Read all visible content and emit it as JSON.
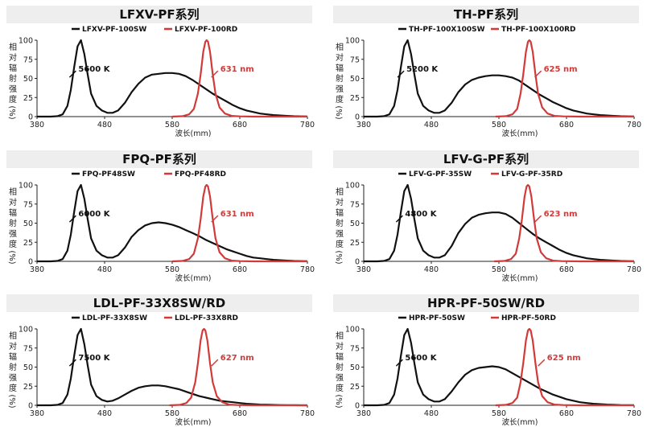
{
  "chart_data": [
    {
      "type": "line",
      "title": "LFXV-PF系列",
      "xlabel": "波长(mm)",
      "ylabel_chars": [
        "相",
        "对",
        "辐",
        "射",
        "强",
        "度"
      ],
      "ylabel_unit": "(%)",
      "xlim": [
        380,
        780
      ],
      "ylim": [
        0,
        100
      ],
      "xticks": [
        380,
        480,
        580,
        680,
        780
      ],
      "yticks": [
        0,
        25,
        50,
        75,
        100
      ],
      "series": [
        {
          "name": "LFXV-PF-100SW",
          "color": "#111111",
          "annotation": "5600 K",
          "anno_x": 440,
          "anno_y": 62,
          "x": [
            380,
            400,
            410,
            418,
            425,
            430,
            435,
            440,
            445,
            450,
            455,
            460,
            468,
            476,
            484,
            492,
            500,
            510,
            520,
            530,
            540,
            550,
            560,
            570,
            580,
            590,
            600,
            610,
            620,
            630,
            640,
            650,
            660,
            670,
            680,
            690,
            700,
            710,
            720,
            730,
            740,
            750,
            760,
            770,
            780
          ],
          "y": [
            0,
            0,
            0.5,
            3,
            14,
            35,
            65,
            92,
            100,
            82,
            55,
            30,
            14,
            8,
            5,
            5,
            8,
            18,
            32,
            43,
            51,
            55,
            56,
            57,
            57,
            56,
            53,
            48,
            42,
            36,
            30,
            25,
            20,
            15,
            11,
            8,
            6,
            4,
            3,
            2,
            1.5,
            1,
            0.5,
            0.3,
            0.2
          ]
        },
        {
          "name": "LFXV-PF-100RD",
          "color": "#d23a3a",
          "annotation": "631 nm",
          "anno_x": 650,
          "anno_y": 62,
          "x": [
            580,
            595,
            605,
            612,
            618,
            622,
            626,
            629,
            631,
            633,
            636,
            640,
            644,
            650,
            658,
            668,
            680,
            700,
            780
          ],
          "y": [
            0,
            0.5,
            3,
            10,
            30,
            55,
            85,
            98,
            100,
            98,
            85,
            55,
            30,
            12,
            4,
            1,
            0.3,
            0,
            0
          ]
        }
      ]
    },
    {
      "type": "line",
      "title": "TH-PF系列",
      "xlabel": "波长(mm)",
      "ylabel_chars": [
        "相",
        "对",
        "辐",
        "射",
        "强",
        "度"
      ],
      "ylabel_unit": "(%)",
      "xlim": [
        380,
        780
      ],
      "ylim": [
        0,
        100
      ],
      "xticks": [
        380,
        480,
        580,
        680,
        780
      ],
      "yticks": [
        0,
        25,
        50,
        75,
        100
      ],
      "series": [
        {
          "name": "TH-PF-100X100SW",
          "color": "#111111",
          "annotation": "5200 K",
          "anno_x": 442,
          "anno_y": 62,
          "x": [
            380,
            400,
            410,
            418,
            425,
            430,
            435,
            440,
            445,
            450,
            455,
            460,
            468,
            476,
            484,
            492,
            500,
            510,
            520,
            530,
            540,
            550,
            560,
            570,
            580,
            590,
            600,
            610,
            620,
            630,
            640,
            650,
            660,
            670,
            680,
            690,
            700,
            710,
            720,
            730,
            740,
            750,
            760,
            770,
            780
          ],
          "y": [
            0,
            0,
            0.5,
            3,
            14,
            35,
            65,
            92,
            100,
            82,
            55,
            30,
            14,
            8,
            5,
            5,
            8,
            18,
            32,
            42,
            48,
            51,
            53,
            54,
            54,
            53,
            51,
            47,
            41,
            35,
            29,
            24,
            19,
            15,
            11,
            8,
            6,
            4,
            3,
            2,
            1.5,
            1,
            0.5,
            0.3,
            0.2
          ]
        },
        {
          "name": "TH-PF-100X100RD",
          "color": "#d23a3a",
          "annotation": "625 nm",
          "anno_x": 645,
          "anno_y": 62,
          "x": [
            575,
            590,
            600,
            607,
            612,
            616,
            620,
            623,
            625,
            627,
            630,
            634,
            638,
            644,
            652,
            662,
            675,
            700,
            780
          ],
          "y": [
            0,
            0.5,
            3,
            10,
            30,
            55,
            85,
            98,
            100,
            98,
            85,
            55,
            30,
            12,
            4,
            1,
            0.3,
            0,
            0
          ]
        }
      ]
    },
    {
      "type": "line",
      "title": "FPQ-PF系列",
      "xlabel": "波长(mm)",
      "ylabel_chars": [
        "相",
        "对",
        "辐",
        "射",
        "强",
        "度"
      ],
      "ylabel_unit": "(%)",
      "xlim": [
        380,
        780
      ],
      "ylim": [
        0,
        100
      ],
      "xticks": [
        380,
        480,
        580,
        680,
        780
      ],
      "yticks": [
        0,
        25,
        50,
        75,
        100
      ],
      "series": [
        {
          "name": "FPQ-PF48SW",
          "color": "#111111",
          "annotation": "6000 K",
          "anno_x": 440,
          "anno_y": 62,
          "x": [
            380,
            400,
            410,
            418,
            425,
            430,
            435,
            440,
            445,
            450,
            455,
            460,
            468,
            476,
            484,
            492,
            500,
            510,
            520,
            530,
            540,
            550,
            560,
            570,
            580,
            590,
            600,
            610,
            620,
            630,
            640,
            650,
            660,
            670,
            680,
            690,
            700,
            710,
            720,
            730,
            740,
            750,
            760,
            770,
            780
          ],
          "y": [
            0,
            0,
            0.5,
            3,
            14,
            35,
            65,
            92,
            100,
            82,
            55,
            30,
            14,
            8,
            5,
            5,
            8,
            18,
            32,
            41,
            47,
            50,
            51,
            50,
            48,
            45,
            41,
            37,
            33,
            28,
            24,
            20,
            16,
            13,
            10,
            7,
            5,
            4,
            3,
            2,
            1.5,
            1,
            0.5,
            0.3,
            0.2
          ]
        },
        {
          "name": "FPQ-PF48RD",
          "color": "#d23a3a",
          "annotation": "631 nm",
          "anno_x": 650,
          "anno_y": 62,
          "x": [
            580,
            595,
            605,
            612,
            618,
            622,
            626,
            629,
            631,
            633,
            636,
            640,
            644,
            650,
            658,
            668,
            680,
            700,
            780
          ],
          "y": [
            0,
            0.5,
            3,
            10,
            30,
            55,
            85,
            98,
            100,
            98,
            85,
            55,
            30,
            12,
            4,
            1,
            0.3,
            0,
            0
          ]
        }
      ]
    },
    {
      "type": "line",
      "title": "LFV-G-PF系列",
      "xlabel": "波长(mm)",
      "ylabel_chars": [
        "相",
        "对",
        "辐",
        "射",
        "强",
        "度"
      ],
      "ylabel_unit": "(%)",
      "xlim": [
        380,
        780
      ],
      "ylim": [
        0,
        100
      ],
      "xticks": [
        380,
        480,
        580,
        680,
        780
      ],
      "yticks": [
        0,
        25,
        50,
        75,
        100
      ],
      "series": [
        {
          "name": "LFV-G-PF-35SW",
          "color": "#111111",
          "annotation": "4800 K",
          "anno_x": 440,
          "anno_y": 62,
          "x": [
            380,
            400,
            410,
            418,
            425,
            430,
            435,
            440,
            445,
            450,
            455,
            460,
            468,
            476,
            484,
            492,
            500,
            510,
            520,
            530,
            540,
            550,
            560,
            570,
            580,
            590,
            600,
            610,
            620,
            630,
            640,
            650,
            660,
            670,
            680,
            690,
            700,
            710,
            720,
            730,
            740,
            750,
            760,
            770,
            780
          ],
          "y": [
            0,
            0,
            0.5,
            3,
            14,
            35,
            65,
            92,
            100,
            82,
            55,
            30,
            14,
            8,
            5,
            5,
            8,
            20,
            37,
            49,
            57,
            61,
            63,
            64,
            64,
            62,
            57,
            50,
            43,
            36,
            30,
            25,
            20,
            15,
            11,
            8,
            6,
            4,
            3,
            2,
            1.5,
            1,
            0.5,
            0.3,
            0.2
          ]
        },
        {
          "name": "LFV-G-PF-35RD",
          "color": "#d23a3a",
          "annotation": "623 nm",
          "anno_x": 645,
          "anno_y": 62,
          "x": [
            573,
            588,
            598,
            605,
            610,
            614,
            618,
            621,
            623,
            625,
            628,
            632,
            636,
            642,
            650,
            660,
            672,
            700,
            780
          ],
          "y": [
            0,
            0.5,
            3,
            10,
            30,
            55,
            85,
            98,
            100,
            98,
            85,
            55,
            30,
            12,
            4,
            1,
            0.3,
            0,
            0
          ]
        }
      ]
    },
    {
      "type": "line",
      "title": "LDL-PF-33X8SW/RD",
      "xlabel": "波长(mm)",
      "ylabel_chars": [
        "相",
        "对",
        "辐",
        "射",
        "强",
        "度"
      ],
      "ylabel_unit": "(%)",
      "xlim": [
        380,
        780
      ],
      "ylim": [
        0,
        100
      ],
      "xticks": [
        380,
        480,
        580,
        680,
        780
      ],
      "yticks": [
        0,
        25,
        50,
        75,
        100
      ],
      "series": [
        {
          "name": "LDL-PF-33X8SW",
          "color": "#111111",
          "annotation": "7500 K",
          "anno_x": 440,
          "anno_y": 62,
          "x": [
            380,
            400,
            410,
            418,
            425,
            430,
            435,
            440,
            445,
            450,
            455,
            460,
            468,
            476,
            484,
            492,
            500,
            510,
            520,
            530,
            540,
            550,
            560,
            570,
            580,
            590,
            600,
            610,
            620,
            630,
            640,
            650,
            660,
            670,
            680,
            690,
            700,
            710,
            720,
            730,
            740,
            750,
            760,
            770,
            780
          ],
          "y": [
            0,
            0,
            0.5,
            3,
            14,
            35,
            65,
            92,
            100,
            80,
            52,
            27,
            12,
            7,
            5,
            6,
            9,
            14,
            19,
            23,
            25,
            26,
            26,
            25,
            23,
            21,
            18,
            15,
            12,
            10,
            8,
            6,
            5,
            4,
            3,
            2,
            1.5,
            1,
            0.8,
            0.5,
            0.3,
            0.2,
            0.1,
            0,
            0
          ]
        },
        {
          "name": "LDL-PF-33X8RD",
          "color": "#d23a3a",
          "annotation": "627 nm",
          "anno_x": 650,
          "anno_y": 62,
          "x": [
            576,
            591,
            601,
            608,
            614,
            618,
            622,
            625,
            627,
            629,
            632,
            636,
            640,
            646,
            654,
            664,
            676,
            700,
            780
          ],
          "y": [
            0,
            0.5,
            3,
            10,
            30,
            55,
            85,
            98,
            100,
            98,
            85,
            55,
            30,
            12,
            4,
            1,
            0.3,
            0,
            0
          ]
        }
      ]
    },
    {
      "type": "line",
      "title": "HPR-PF-50SW/RD",
      "xlabel": "波长(mm)",
      "ylabel_chars": [
        "相",
        "对",
        "辐",
        "射",
        "强",
        "度"
      ],
      "ylabel_unit": "(%)",
      "xlim": [
        380,
        780
      ],
      "ylim": [
        0,
        100
      ],
      "xticks": [
        380,
        480,
        580,
        680,
        780
      ],
      "yticks": [
        0,
        25,
        50,
        75,
        100
      ],
      "series": [
        {
          "name": "HPR-PF-50SW",
          "color": "#111111",
          "annotation": "5600 K",
          "anno_x": 440,
          "anno_y": 62,
          "x": [
            380,
            400,
            410,
            418,
            425,
            430,
            435,
            440,
            445,
            450,
            455,
            460,
            468,
            476,
            484,
            492,
            500,
            510,
            520,
            530,
            540,
            550,
            560,
            570,
            580,
            590,
            600,
            610,
            620,
            630,
            640,
            650,
            660,
            670,
            680,
            690,
            700,
            710,
            720,
            730,
            740,
            750,
            760,
            770,
            780
          ],
          "y": [
            0,
            0,
            0.5,
            3,
            14,
            35,
            65,
            92,
            100,
            82,
            55,
            30,
            14,
            8,
            5,
            5,
            8,
            18,
            30,
            40,
            46,
            49,
            50,
            51,
            50,
            47,
            42,
            37,
            32,
            27,
            22,
            18,
            14,
            11,
            8,
            6,
            4,
            3,
            2,
            1.5,
            1,
            0.6,
            0.3,
            0.2,
            0.1
          ]
        },
        {
          "name": "HPR-PF-50RD",
          "color": "#d23a3a",
          "annotation": "625 nm",
          "anno_x": 650,
          "anno_y": 62,
          "x": [
            575,
            590,
            600,
            607,
            612,
            616,
            620,
            623,
            625,
            627,
            630,
            634,
            638,
            644,
            652,
            662,
            675,
            700,
            780
          ],
          "y": [
            0,
            0.5,
            3,
            10,
            30,
            55,
            85,
            98,
            100,
            98,
            85,
            55,
            30,
            12,
            4,
            1,
            0.3,
            0,
            0
          ]
        }
      ]
    }
  ]
}
